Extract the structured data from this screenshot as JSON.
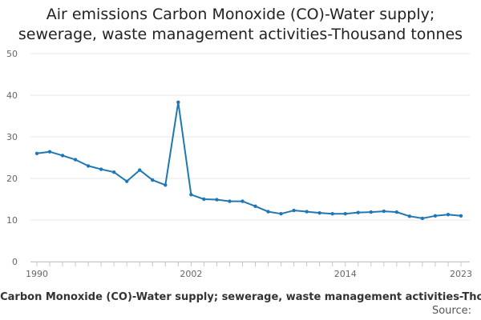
{
  "chart_data": {
    "type": "line",
    "title_line1": "Air emissions Carbon Monoxide (CO)-Water supply;",
    "title_line2": "sewerage, waste management activities-Thousand tonnes",
    "x_axis_caption": "Air emissions Carbon Monoxide (CO)-Water supply; sewerage, waste management activities-Thousand tonnes",
    "source_label": "Source:",
    "xlabel": "",
    "ylabel": "",
    "xlim": [
      1990,
      2023
    ],
    "ylim": [
      0,
      50
    ],
    "y_ticks": [
      0,
      10,
      20,
      30,
      40,
      50
    ],
    "x_ticks": [
      1990,
      2002,
      2014,
      2023
    ],
    "grid": true,
    "series": [
      {
        "name": "Carbon Monoxide (CO) - Water supply; sewerage, waste management activities",
        "color": "#1f77b4",
        "x": [
          1990,
          1991,
          1992,
          1993,
          1994,
          1995,
          1996,
          1997,
          1998,
          1999,
          2000,
          2001,
          2002,
          2003,
          2004,
          2005,
          2006,
          2007,
          2008,
          2009,
          2010,
          2011,
          2012,
          2013,
          2014,
          2015,
          2016,
          2017,
          2018,
          2019,
          2020,
          2021,
          2022,
          2023
        ],
        "values": [
          26.0,
          26.4,
          25.5,
          24.5,
          23.0,
          22.2,
          21.5,
          19.3,
          22.0,
          19.6,
          18.4,
          38.3,
          16.1,
          15.0,
          14.9,
          14.5,
          14.5,
          13.3,
          12.0,
          11.5,
          12.3,
          12.0,
          11.7,
          11.5,
          11.5,
          11.8,
          11.9,
          12.1,
          11.9,
          10.9,
          10.4,
          11.0,
          11.3,
          11.0
        ]
      }
    ]
  }
}
